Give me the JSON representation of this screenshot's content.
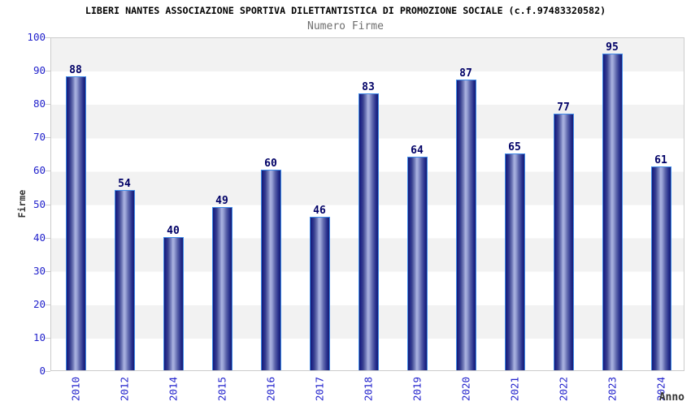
{
  "header": {
    "title": "LIBERI NANTES ASSOCIAZIONE SPORTIVA DILETTANTISTICA DI PROMOZIONE SOCIALE (c.f.97483320582)",
    "subtitle": "Numero Firme"
  },
  "chart_data": {
    "type": "bar",
    "title": "LIBERI NANTES ASSOCIAZIONE SPORTIVA DILETTANTISTICA DI PROMOZIONE SOCIALE (c.f.97483320582)",
    "subtitle": "Numero Firme",
    "xlabel": "Anno",
    "ylabel": "Firme",
    "categories": [
      "2010",
      "2012",
      "2014",
      "2015",
      "2016",
      "2017",
      "2018",
      "2019",
      "2020",
      "2021",
      "2022",
      "2023",
      "2024"
    ],
    "values": [
      88,
      54,
      40,
      49,
      60,
      46,
      83,
      64,
      87,
      65,
      77,
      95,
      61
    ],
    "ylim": [
      0,
      100
    ],
    "ytick_interval": 10,
    "ytick_labels": [
      "0",
      "10",
      "20",
      "30",
      "40",
      "50",
      "60",
      "70",
      "80",
      "90",
      "100"
    ],
    "grid": "alternating horizontal bands, no vertical gridlines",
    "legend_position": "none",
    "value_labels_shown": true,
    "colors": {
      "bar_edge_dark": "#141a6e",
      "bar_center_light": "#aab3e0",
      "bar_outline": "#3f8ae8",
      "value_label": "#000066",
      "axis_tick_label": "#2222cc",
      "band_gray": "#f2f2f2",
      "band_white": "#ffffff",
      "plot_border": "#cccccc",
      "title_color": "#000000",
      "subtitle_color": "#6e6e6e",
      "axis_title_color": "#333333"
    }
  }
}
